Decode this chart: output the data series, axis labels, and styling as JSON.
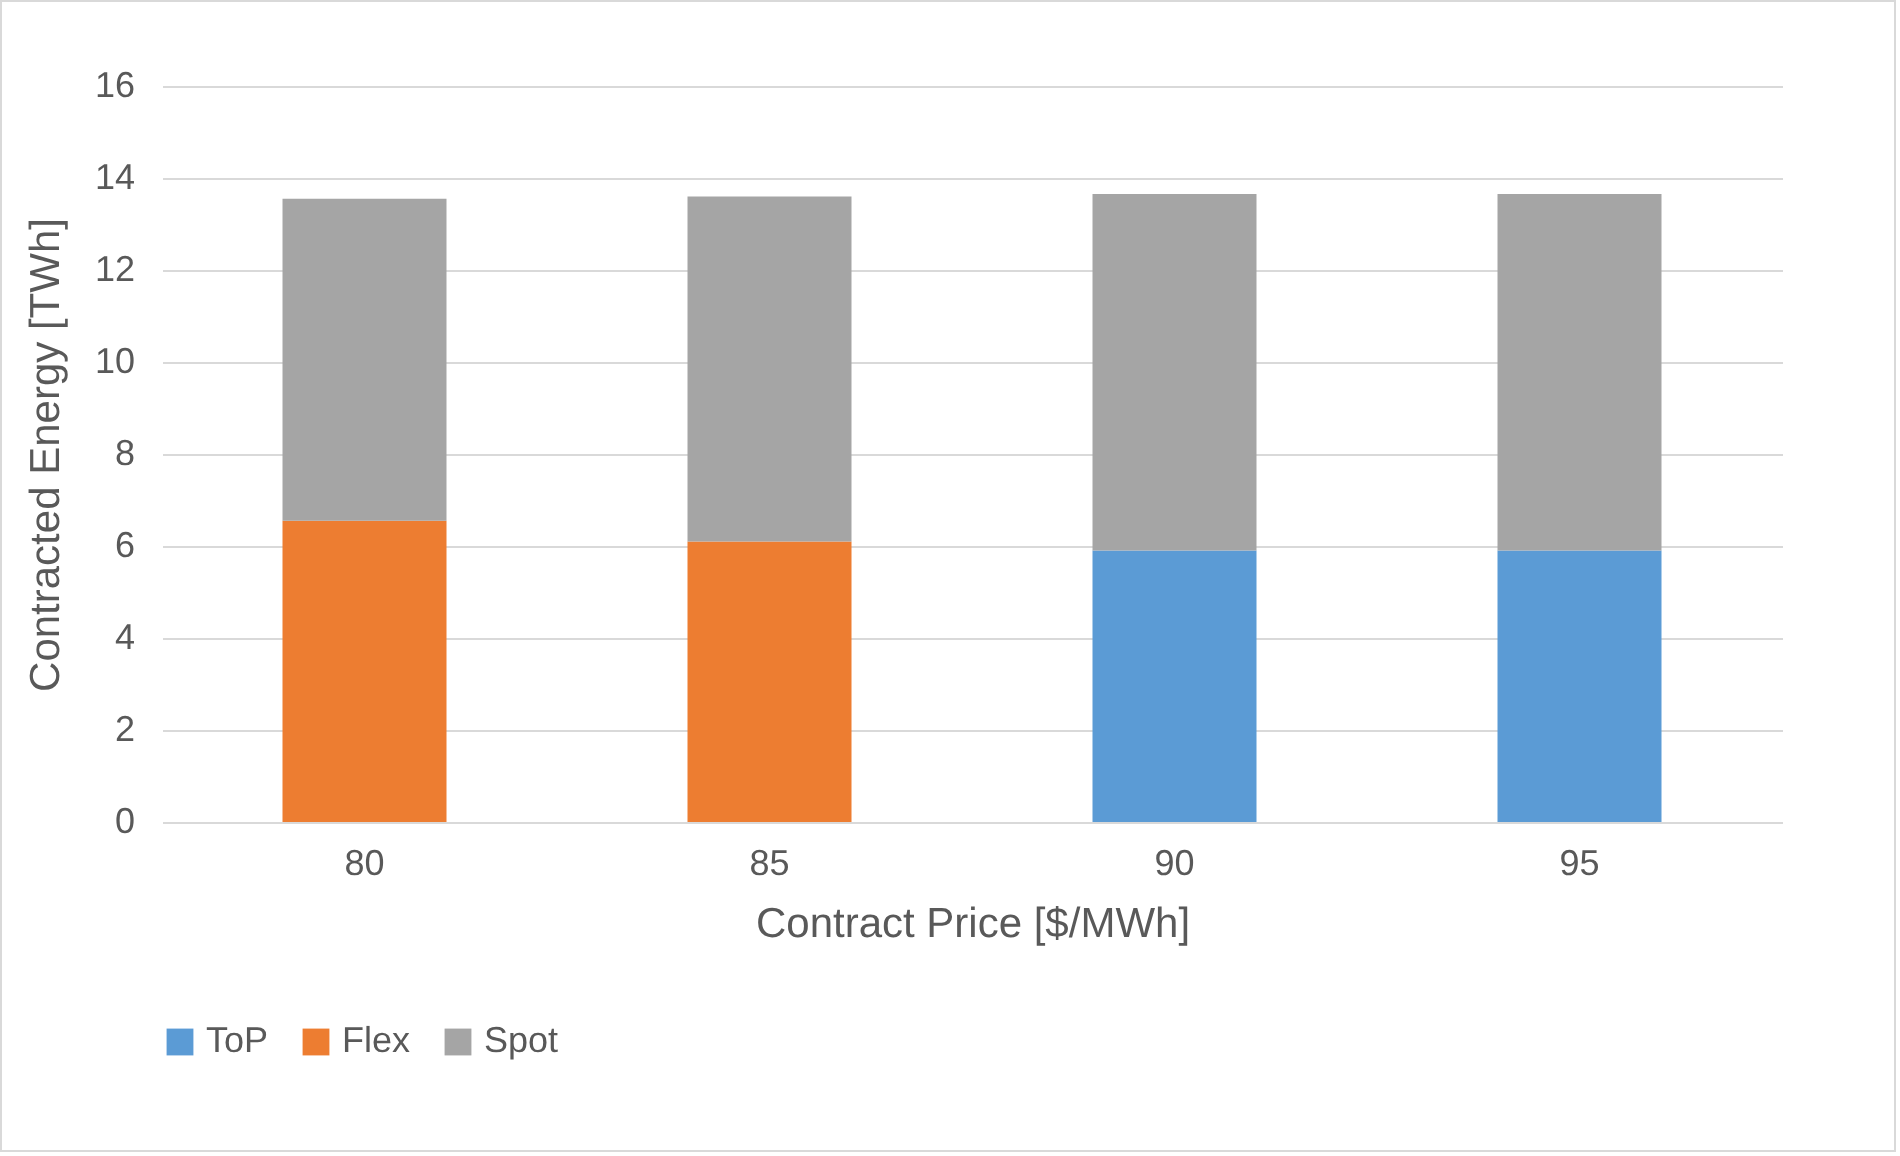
{
  "chart_data": {
    "type": "bar",
    "stacked": true,
    "xlabel": "Contract Price [$/MWh]",
    "ylabel": "Contracted Energy [TWh]",
    "categories": [
      "80",
      "85",
      "90",
      "95"
    ],
    "series": [
      {
        "name": "ToP",
        "color": "#5b9bd5",
        "values": [
          null,
          null,
          5.9,
          5.9
        ]
      },
      {
        "name": "Flex",
        "color": "#ed7d31",
        "values": [
          6.55,
          6.1,
          null,
          null
        ]
      },
      {
        "name": "Spot",
        "color": "#a5a5a5",
        "values": [
          7.0,
          7.5,
          7.75,
          7.75
        ]
      }
    ],
    "ylim": [
      0,
      16
    ],
    "yticks": [
      0,
      2,
      4,
      6,
      8,
      10,
      12,
      14,
      16
    ],
    "grid": "y",
    "legend": "bottom"
  }
}
